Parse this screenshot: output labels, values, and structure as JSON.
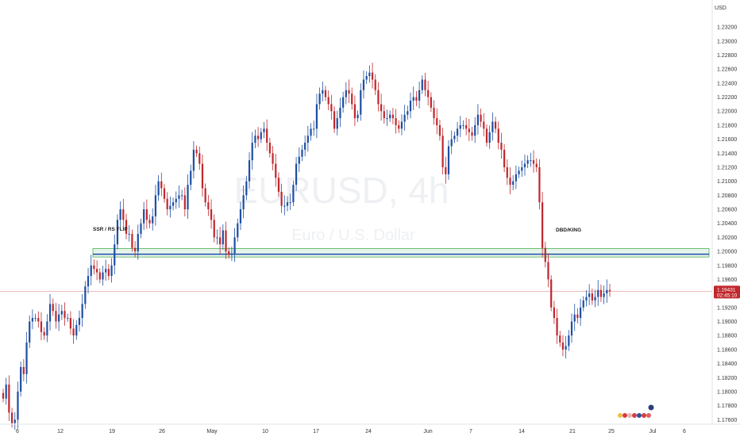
{
  "symbol_watermark": "EURUSD, 4h",
  "name_watermark": "Euro / U.S. Dollar",
  "currency": "USD",
  "colors": {
    "up": "#1e4fa3",
    "down": "#c0282d",
    "zone_fill": "#e6f4ec",
    "zone_border": "#4caf50",
    "zone_midline": "#1e4fa3",
    "current_line": "#e8a3a3",
    "price_tag_bg": "#c0282d"
  },
  "annotations": {
    "left_zone_label": "SSR / RS FLIP",
    "right_zone_label": "DBD/KING"
  },
  "current_price": {
    "value": "1.19431",
    "countdown": "02:45:10"
  },
  "chart_data": {
    "type": "candlestick",
    "title": "",
    "xlabel": "",
    "ylabel": "",
    "ylim": [
      1.174,
      1.2345
    ],
    "y_ticks": [
      "1.17400",
      "1.17600",
      "1.17800",
      "1.18000",
      "1.18200",
      "1.18400",
      "1.18600",
      "1.18800",
      "1.19000",
      "1.19200",
      "1.19400",
      "1.19600",
      "1.19800",
      "1.20000",
      "1.20200",
      "1.20400",
      "1.20600",
      "1.20800",
      "1.21000",
      "1.21200",
      "1.21400",
      "1.21600",
      "1.21800",
      "1.22000",
      "1.22200",
      "1.22400",
      "1.22600",
      "1.22800",
      "1.23000",
      "1.23200"
    ],
    "x_ticks": [
      "6",
      "12",
      "19",
      "26",
      "May",
      "10",
      "17",
      "24",
      "Jun",
      "7",
      "14",
      "21",
      "25",
      "Jul",
      "6"
    ],
    "zone": {
      "low": 1.1992,
      "high": 1.2004,
      "mid": 1.1996
    },
    "series": [
      {
        "close": [
          1.179,
          1.181,
          1.177,
          1.1755,
          1.176,
          1.18,
          1.1835,
          1.1825,
          1.187,
          1.19,
          1.1905,
          1.1905,
          1.19,
          1.1885,
          1.188,
          1.19,
          1.1925,
          1.1915,
          1.19,
          1.191,
          1.1915,
          1.1905,
          1.1905,
          1.189,
          1.188,
          1.1895,
          1.1905,
          1.1925,
          1.195,
          1.1965,
          1.198,
          1.1975,
          1.197,
          1.196,
          1.197,
          1.1975,
          1.1965,
          1.198,
          1.201,
          1.2045,
          1.206,
          1.2045,
          1.2025,
          1.2025,
          1.2005,
          1.2,
          1.2025,
          1.204,
          1.206,
          1.2045,
          1.204,
          1.205,
          1.208,
          1.21,
          1.209,
          1.2075,
          1.206,
          1.2065,
          1.207,
          1.2075,
          1.208,
          1.208,
          1.206,
          1.2095,
          1.2115,
          1.2145,
          1.214,
          1.2125,
          1.209,
          1.207,
          1.206,
          1.2045,
          1.202,
          1.202,
          1.201,
          1.203,
          1.2,
          1.1995,
          1.1997,
          1.202,
          1.204,
          1.206,
          1.208,
          1.21,
          1.213,
          1.2155,
          1.2165,
          1.216,
          1.217,
          1.2175,
          1.2155,
          1.214,
          1.2125,
          1.2105,
          1.2085,
          1.2065,
          1.2065,
          1.207,
          1.207,
          1.2095,
          1.2125,
          1.2135,
          1.2145,
          1.2155,
          1.2165,
          1.2175,
          1.2175,
          1.221,
          1.2225,
          1.223,
          1.222,
          1.221,
          1.22,
          1.2175,
          1.219,
          1.2205,
          1.222,
          1.223,
          1.2225,
          1.221,
          1.219,
          1.2195,
          1.223,
          1.2245,
          1.225,
          1.2255,
          1.2245,
          1.223,
          1.221,
          1.22,
          1.219,
          1.219,
          1.2195,
          1.219,
          1.218,
          1.2175,
          1.2185,
          1.2195,
          1.22,
          1.2215,
          1.222,
          1.2215,
          1.223,
          1.2245,
          1.223,
          1.222,
          1.2205,
          1.219,
          1.218,
          1.2165,
          1.212,
          1.211,
          1.215,
          1.216,
          1.2165,
          1.2175,
          1.218,
          1.218,
          1.2175,
          1.217,
          1.2165,
          1.218,
          1.2195,
          1.2185,
          1.2175,
          1.2155,
          1.217,
          1.2185,
          1.2175,
          1.2155,
          1.2145,
          1.212,
          1.2105,
          1.2095,
          1.21,
          1.211,
          1.2115,
          1.212,
          1.2125,
          1.213,
          1.213,
          1.2125,
          1.212,
          1.207,
          1.2005,
          1.1985,
          1.196,
          1.192,
          1.1905,
          1.188,
          1.187,
          1.186,
          1.1865,
          1.188,
          1.19,
          1.191,
          1.1905,
          1.192,
          1.193,
          1.1935,
          1.194,
          1.193,
          1.1935,
          1.1945,
          1.1935,
          1.194,
          1.1945,
          1.1943
        ]
      }
    ]
  }
}
